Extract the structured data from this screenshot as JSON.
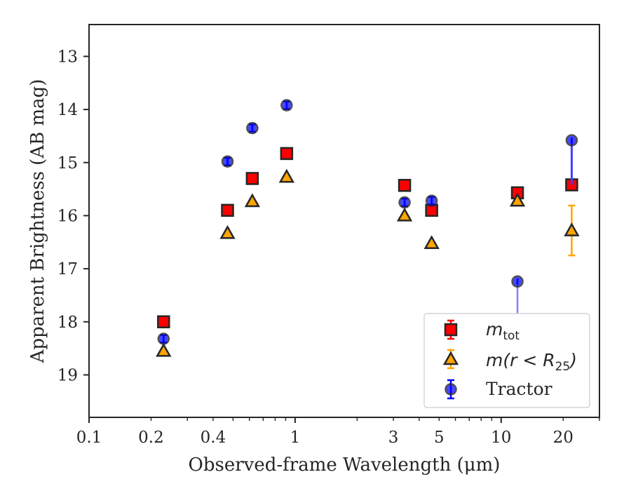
{
  "chart_data": {
    "type": "scatter",
    "title": "",
    "xlabel": "Observed-frame Wavelength (μm)",
    "ylabel": "Apparent Brightness (AB mag)",
    "xscale": "log",
    "yscale": "linear",
    "y_inverted": true,
    "xlim": [
      0.1,
      30
    ],
    "ylim": [
      19.8,
      12.4
    ],
    "xticks": [
      0.1,
      0.2,
      0.4,
      1,
      3,
      5,
      10,
      20
    ],
    "xtick_labels": [
      "0.1",
      "0.2",
      "0.4",
      "1",
      "3",
      "5",
      "10",
      "20"
    ],
    "yticks": [
      13,
      14,
      15,
      16,
      17,
      18,
      19
    ],
    "ytick_labels": [
      "13",
      "14",
      "15",
      "16",
      "17",
      "18",
      "19"
    ],
    "legend_position": "lower-right",
    "series": [
      {
        "name": "m_tot",
        "label_main": "m",
        "label_sub": "tot",
        "marker": "square",
        "color": "#ff0000",
        "edge": "#262626",
        "points": [
          {
            "x": 0.23,
            "y": 18.0,
            "err": 0.06
          },
          {
            "x": 0.47,
            "y": 15.9,
            "err": 0.05
          },
          {
            "x": 0.62,
            "y": 15.3,
            "err": 0.05
          },
          {
            "x": 0.91,
            "y": 14.83,
            "err": 0.05
          },
          {
            "x": 3.4,
            "y": 15.43,
            "err": 0.05
          },
          {
            "x": 4.6,
            "y": 15.9,
            "err": 0.06
          },
          {
            "x": 12.0,
            "y": 15.57,
            "err": 0.05
          },
          {
            "x": 22.0,
            "y": 15.42,
            "err": 0.05
          }
        ]
      },
      {
        "name": "m(r < R_25)",
        "label_main": "m(r < R",
        "label_sub": "25",
        "label_end": ")",
        "marker": "triangle",
        "color": "#ffa500",
        "edge": "#262626",
        "points": [
          {
            "x": 0.23,
            "y": 18.55,
            "err": 0.0
          },
          {
            "x": 0.47,
            "y": 16.33,
            "err": 0.0
          },
          {
            "x": 0.62,
            "y": 15.73,
            "err": 0.0
          },
          {
            "x": 0.91,
            "y": 15.27,
            "err": 0.0
          },
          {
            "x": 3.4,
            "y": 16.0,
            "err": 0.0
          },
          {
            "x": 4.6,
            "y": 16.52,
            "err": 0.0
          },
          {
            "x": 12.0,
            "y": 15.72,
            "err": 0.0
          },
          {
            "x": 22.0,
            "y": 16.28,
            "err": 0.47
          }
        ]
      },
      {
        "name": "Tractor",
        "label_main": "Tractor",
        "marker": "circle",
        "color": "#0000ff",
        "edge": "#262626",
        "points": [
          {
            "x": 0.23,
            "y": 18.32,
            "err": 0.07
          },
          {
            "x": 0.47,
            "y": 14.98,
            "err": 0.07
          },
          {
            "x": 0.62,
            "y": 14.35,
            "err": 0.07
          },
          {
            "x": 0.91,
            "y": 13.92,
            "err": 0.07
          },
          {
            "x": 3.4,
            "y": 15.75,
            "err": 0.07
          },
          {
            "x": 4.6,
            "y": 15.72,
            "err": 0.07
          },
          {
            "x": 12.0,
            "y": 17.24,
            "err": 0.0,
            "upper_limit": true,
            "arrow_to": 18.1
          },
          {
            "x": 22.0,
            "y": 14.58,
            "err": 0.0,
            "bar_to": 15.42
          }
        ]
      }
    ]
  }
}
